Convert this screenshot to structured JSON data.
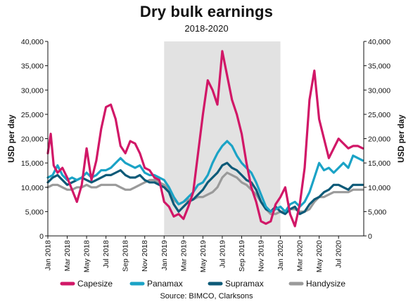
{
  "chart_data": {
    "type": "line",
    "title": "Dry bulk earnings",
    "subtitle": "2018-2020",
    "ylabel": "USD per day",
    "ylabel_right": "USD per day",
    "source": "Source: BIMCO, Clarksons",
    "ylim": [
      0,
      40000
    ],
    "yticks": [
      "0",
      "5,000",
      "10,000",
      "15,000",
      "20,000",
      "25,000",
      "30,000",
      "35,000",
      "40,000"
    ],
    "ytick_values": [
      0,
      5000,
      10000,
      15000,
      20000,
      25000,
      30000,
      35000,
      40000
    ],
    "xticks": [
      "Jan 2018",
      "Mar 2018",
      "May 2018",
      "Jul 2018",
      "Sep 2018",
      "Nov 2018",
      "Jan 2019",
      "Mar 2019",
      "May 2019",
      "Jul 2019",
      "Sep 2019",
      "Nov 2019",
      "Jan 2020",
      "Mar 2020",
      "May 2020",
      "Jul 2020"
    ],
    "xlim_months": [
      0,
      32.6
    ],
    "highlight_range_months": [
      12,
      24
    ],
    "grid": false,
    "legend_position": "bottom",
    "series": [
      {
        "name": "Capesize",
        "color": "#d11767",
        "x": [
          0,
          0.3,
          0.6,
          1,
          1.5,
          2,
          2.5,
          3,
          3.5,
          4,
          4.5,
          5,
          5.5,
          6,
          6.5,
          7,
          7.5,
          8,
          8.5,
          9,
          9.5,
          10,
          10.5,
          11,
          11.5,
          12,
          12.5,
          13,
          13.5,
          14,
          14.5,
          15,
          15.5,
          16,
          16.5,
          17,
          17.5,
          18,
          18.5,
          19,
          19.5,
          20,
          20.5,
          21,
          21.5,
          22,
          22.5,
          23,
          23.5,
          24,
          24.5,
          25,
          25.5,
          26,
          26.5,
          27,
          27.5,
          28,
          28.5,
          29,
          29.5,
          30,
          30.5,
          31,
          31.5,
          32,
          32.5
        ],
        "values": [
          17000,
          21000,
          14500,
          13000,
          14000,
          12000,
          9500,
          7000,
          10500,
          18000,
          11500,
          15500,
          22000,
          26500,
          27000,
          24000,
          18500,
          17000,
          19500,
          19000,
          17000,
          14000,
          13500,
          12000,
          11500,
          7000,
          6000,
          4000,
          4500,
          3500,
          6000,
          9000,
          17000,
          25000,
          32000,
          30000,
          27000,
          38000,
          33000,
          28000,
          25000,
          21000,
          15000,
          10000,
          7000,
          3000,
          2500,
          3000,
          6500,
          8000,
          10000,
          4500,
          2000,
          6500,
          14000,
          28000,
          34000,
          24000,
          20000,
          16000,
          18000,
          20000,
          19000,
          18000,
          18500,
          18500,
          18000
        ]
      },
      {
        "name": "Panamax",
        "color": "#1ba3c6",
        "x": [
          0,
          0.5,
          1,
          1.5,
          2,
          2.5,
          3,
          3.5,
          4,
          4.5,
          5,
          5.5,
          6,
          6.5,
          7,
          7.5,
          8,
          8.5,
          9,
          9.5,
          10,
          10.5,
          11,
          11.5,
          12,
          12.5,
          13,
          13.5,
          14,
          14.5,
          15,
          15.5,
          16,
          16.5,
          17,
          17.5,
          18,
          18.5,
          19,
          19.5,
          20,
          20.5,
          21,
          21.5,
          22,
          22.5,
          23,
          23.5,
          24,
          24.5,
          25,
          25.5,
          26,
          26.5,
          27,
          27.5,
          28,
          28.5,
          29,
          29.5,
          30,
          30.5,
          31,
          31.5,
          32,
          32.5
        ],
        "values": [
          12000,
          12500,
          14500,
          12500,
          11500,
          12000,
          11500,
          12000,
          13000,
          12000,
          12500,
          13500,
          13500,
          14000,
          15000,
          16000,
          15000,
          14500,
          14000,
          14500,
          13000,
          12500,
          12500,
          12000,
          11500,
          10000,
          8000,
          6500,
          7000,
          8000,
          9000,
          10500,
          11000,
          12500,
          15000,
          17000,
          18500,
          19500,
          18500,
          16500,
          15000,
          14000,
          13000,
          11000,
          8500,
          6000,
          5000,
          5500,
          6000,
          5000,
          6500,
          7000,
          6000,
          7000,
          9000,
          12000,
          15000,
          13500,
          14000,
          13000,
          14000,
          15000,
          14000,
          16500,
          16000,
          15500
        ]
      },
      {
        "name": "Supramax",
        "color": "#0d5a78",
        "x": [
          0,
          0.5,
          1,
          1.5,
          2,
          2.5,
          3,
          3.5,
          4,
          4.5,
          5,
          5.5,
          6,
          6.5,
          7,
          7.5,
          8,
          8.5,
          9,
          9.5,
          10,
          10.5,
          11,
          11.5,
          12,
          12.5,
          13,
          13.5,
          14,
          14.5,
          15,
          15.5,
          16,
          16.5,
          17,
          17.5,
          18,
          18.5,
          19,
          19.5,
          20,
          20.5,
          21,
          21.5,
          22,
          22.5,
          23,
          23.5,
          24,
          24.5,
          25,
          25.5,
          26,
          26.5,
          27,
          27.5,
          28,
          28.5,
          29,
          29.5,
          30,
          30.5,
          31,
          31.5,
          32,
          32.5
        ],
        "values": [
          11000,
          12000,
          12500,
          11500,
          10500,
          11000,
          11500,
          12000,
          11500,
          11000,
          11500,
          12000,
          12500,
          12500,
          13000,
          13500,
          12500,
          12000,
          12000,
          12500,
          11500,
          11000,
          11000,
          10500,
          10000,
          9000,
          6500,
          5000,
          6000,
          7000,
          7500,
          8500,
          9500,
          11000,
          12000,
          13000,
          14500,
          15000,
          14000,
          13500,
          12500,
          11500,
          11000,
          9500,
          7000,
          5500,
          5000,
          6000,
          5000,
          4500,
          5500,
          6000,
          4500,
          5000,
          6500,
          7500,
          8000,
          9000,
          9500,
          10500,
          10500,
          10000,
          9500,
          10500,
          10500,
          10500
        ]
      },
      {
        "name": "Handysize",
        "color": "#9a9a9a",
        "x": [
          0,
          0.5,
          1,
          1.5,
          2,
          2.5,
          3,
          3.5,
          4,
          4.5,
          5,
          5.5,
          6,
          6.5,
          7,
          7.5,
          8,
          8.5,
          9,
          9.5,
          10,
          10.5,
          11,
          11.5,
          12,
          12.5,
          13,
          13.5,
          14,
          14.5,
          15,
          15.5,
          16,
          16.5,
          17,
          17.5,
          18,
          18.5,
          19,
          19.5,
          20,
          20.5,
          21,
          21.5,
          22,
          22.5,
          23,
          23.5,
          24,
          24.5,
          25,
          25.5,
          26,
          26.5,
          27,
          27.5,
          28,
          28.5,
          29,
          29.5,
          30,
          30.5,
          31,
          31.5,
          32,
          32.5
        ],
        "values": [
          10000,
          10500,
          10500,
          10000,
          9500,
          9500,
          10000,
          10000,
          10500,
          10000,
          10000,
          10500,
          10500,
          10500,
          10500,
          10000,
          9500,
          9500,
          10000,
          10500,
          11000,
          11500,
          11500,
          11000,
          10500,
          9500,
          7500,
          6500,
          7000,
          7500,
          7500,
          8000,
          8000,
          8500,
          9000,
          10000,
          12000,
          13000,
          12500,
          12000,
          11000,
          10500,
          9500,
          8500,
          7000,
          5500,
          4500,
          4500,
          5000,
          5000,
          5500,
          5500,
          5000,
          5000,
          5500,
          7000,
          8000,
          8000,
          8500,
          9000,
          9000,
          9000,
          9000,
          9500,
          9500,
          9500
        ]
      }
    ]
  }
}
